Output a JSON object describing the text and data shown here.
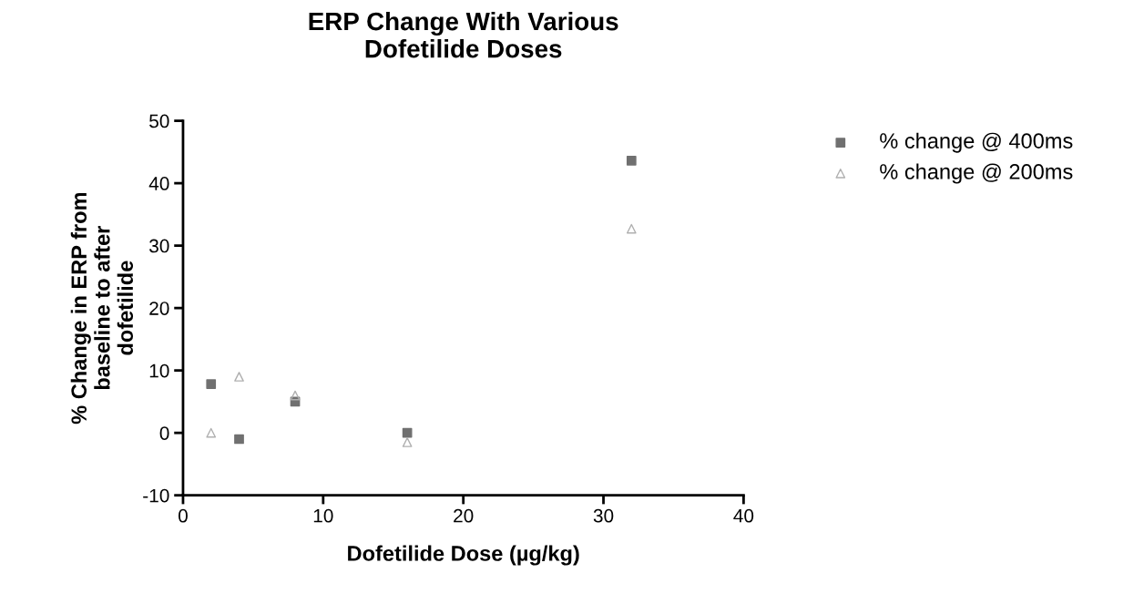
{
  "chart_data": {
    "type": "scatter",
    "title": "ERP Change With Various\nDofetilide Doses",
    "xlabel": "Dofetilide Dose (µg/kg)",
    "ylabel": "% Change in ERP from\nbaseline to after\ndofetilide",
    "xlim": [
      0,
      40
    ],
    "xticks": [
      0,
      10,
      20,
      30,
      40
    ],
    "ylim": [
      -10,
      50
    ],
    "yticks": [
      -10,
      0,
      10,
      20,
      30,
      40,
      50
    ],
    "grid": false,
    "legend": "right",
    "series": [
      {
        "name": "% change @ 400ms",
        "color": "#707070",
        "marker": "square",
        "x": [
          2,
          4,
          8,
          16,
          32
        ],
        "values": [
          7.8,
          -1,
          5,
          0,
          43.6
        ]
      },
      {
        "name": "% change @ 200ms",
        "color": "#b0b0b0",
        "marker": "triangle",
        "x": [
          2,
          4,
          8,
          16,
          32
        ],
        "values": [
          0,
          9,
          6,
          -1.5,
          32.7
        ]
      }
    ]
  }
}
